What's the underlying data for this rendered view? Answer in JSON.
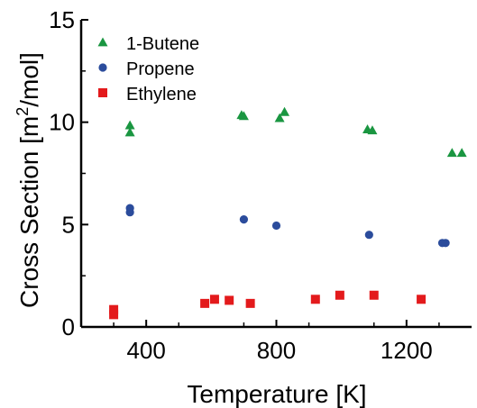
{
  "chart_data": {
    "type": "scatter",
    "xlabel": "Temperature [K]",
    "ylabel": "Cross Section [m²/mol]",
    "ylabel_parts": {
      "before": "Cross Section [m",
      "sup": "2",
      "after": "/mol]"
    },
    "xlim": [
      200,
      1400
    ],
    "ylim": [
      0,
      15
    ],
    "x_ticks": [
      400,
      800,
      1200
    ],
    "y_ticks": [
      0,
      5,
      10,
      15
    ],
    "grid": false,
    "legend_position": "top-left",
    "series": [
      {
        "name": "1-Butene",
        "marker": "triangle",
        "color": "#1a9641",
        "points": [
          [
            350,
            9.85
          ],
          [
            350,
            9.5
          ],
          [
            693,
            10.35
          ],
          [
            700,
            10.3
          ],
          [
            810,
            10.2
          ],
          [
            825,
            10.5
          ],
          [
            1080,
            9.65
          ],
          [
            1095,
            9.6
          ],
          [
            1340,
            8.5
          ],
          [
            1370,
            8.5
          ]
        ]
      },
      {
        "name": "Propene",
        "marker": "circle",
        "color": "#2b4c9c",
        "points": [
          [
            350,
            5.8
          ],
          [
            350,
            5.6
          ],
          [
            700,
            5.25
          ],
          [
            800,
            4.95
          ],
          [
            1085,
            4.5
          ],
          [
            1310,
            4.1
          ],
          [
            1320,
            4.1
          ]
        ]
      },
      {
        "name": "Ethylene",
        "marker": "square",
        "color": "#e31a1c",
        "points": [
          [
            300,
            0.85
          ],
          [
            300,
            0.6
          ],
          [
            580,
            1.15
          ],
          [
            610,
            1.35
          ],
          [
            655,
            1.3
          ],
          [
            720,
            1.15
          ],
          [
            920,
            1.35
          ],
          [
            995,
            1.55
          ],
          [
            1100,
            1.55
          ],
          [
            1245,
            1.35
          ]
        ]
      }
    ]
  }
}
